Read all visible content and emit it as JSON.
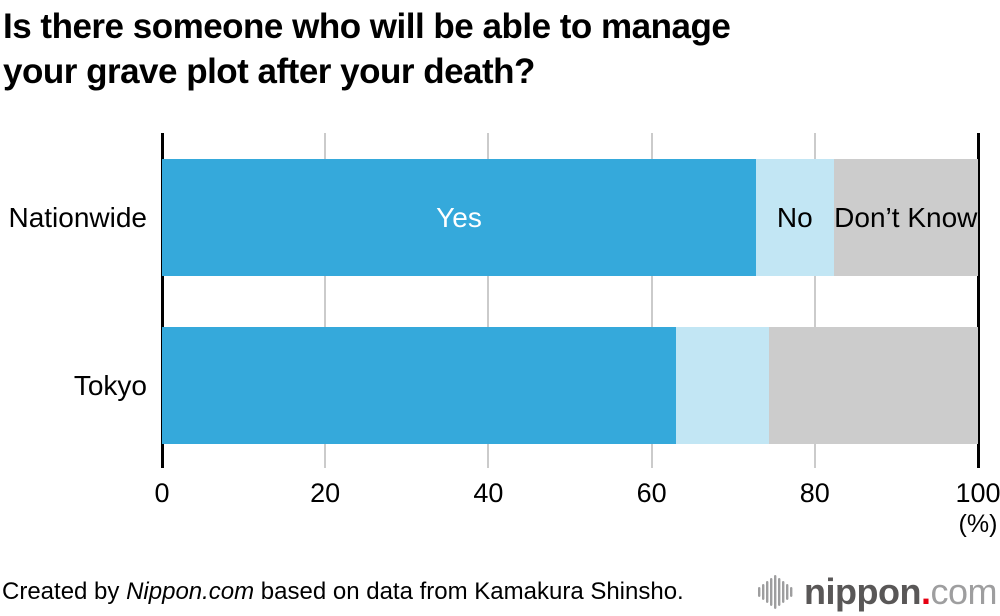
{
  "title_lines": [
    "Is there someone who will be able to manage",
    "your grave plot after your death?"
  ],
  "footer": {
    "credit_prefix": "Created by ",
    "credit_source": "Nippon.com",
    "credit_suffix": " based on data from Kamakura Shinsho.",
    "logo": {
      "name": "nippon.com",
      "icon": "soundwave-bars-icon",
      "text_main": "nippon",
      "text_dot": ".",
      "text_suffix": "com"
    }
  },
  "colors": {
    "yes": "#35A9DB",
    "no": "#C2E6F4",
    "dont_know": "#CCCCCC",
    "axis": "#000000",
    "gridline": "#CBCBCB",
    "logo_dark": "#595757",
    "logo_light": "#9E9E9F",
    "logo_red": "#E60012"
  },
  "chart_data": {
    "type": "bar",
    "orientation": "horizontal",
    "stacked": true,
    "title": "Is there someone who will be able to manage your grave plot after your death?",
    "categories": [
      "Nationwide",
      "Tokyo"
    ],
    "series": [
      {
        "name": "Yes",
        "values": [
          72.8,
          63.0
        ],
        "color": "#35A9DB",
        "label_color": "#FFFFFF"
      },
      {
        "name": "No",
        "values": [
          9.5,
          11.4
        ],
        "color": "#C2E6F4",
        "label_color": "#000000"
      },
      {
        "name": "Don’t Know",
        "values": [
          17.7,
          25.6
        ],
        "color": "#CCCCCC",
        "label_color": "#000000"
      }
    ],
    "segment_labels_on_category": "Nationwide",
    "x_ticks": [
      "0",
      "20",
      "40",
      "60",
      "80",
      "100"
    ],
    "x_tick_values": [
      0,
      20,
      40,
      60,
      80,
      100
    ],
    "x_unit": "(%)",
    "xlim": [
      0,
      100
    ],
    "grid": true,
    "legend": "inline-segment-labels"
  }
}
